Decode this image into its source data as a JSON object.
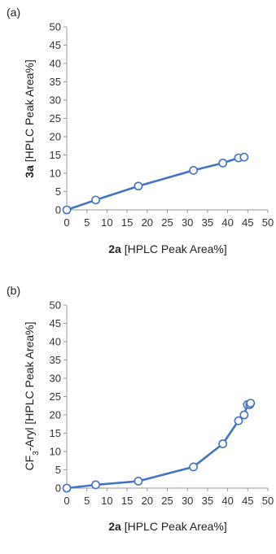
{
  "chart_data": [
    {
      "type": "line",
      "panel_label": "(a)",
      "xlabel": "2a [HPLC Peak Area%]",
      "xlabel_bold": "2a",
      "xlabel_rest": " [HPLC Peak Area%]",
      "ylabel": "3a [HPLC Peak Area%]",
      "ylabel_bold": "3a",
      "ylabel_rest": " [HPLC Peak Area%]",
      "xlim": [
        0,
        50
      ],
      "ylim": [
        0,
        50
      ],
      "xticks": [
        0,
        5,
        10,
        15,
        20,
        25,
        30,
        35,
        40,
        45,
        50
      ],
      "yticks": [
        0,
        5,
        10,
        15,
        20,
        25,
        30,
        35,
        40,
        45,
        50
      ],
      "grid": false,
      "series": [
        {
          "color": "#4472c4",
          "marker": "open-circle",
          "x": [
            0,
            7.2,
            17.8,
            31.5,
            38.8,
            42.7,
            44.1
          ],
          "y": [
            0,
            2.7,
            6.5,
            10.8,
            12.8,
            14.2,
            14.4
          ]
        }
      ]
    },
    {
      "type": "line",
      "panel_label": "(b)",
      "xlabel": "2a [HPLC Peak Area%]",
      "xlabel_bold": "2a",
      "xlabel_rest": " [HPLC Peak Area%]",
      "ylabel": "CF3-Aryl [HPLC Peak Area%]",
      "ylabel_parts": {
        "a": "CF",
        "sub": "3",
        "b": "-Aryl [HPLC Peak Area%]"
      },
      "xlim": [
        0,
        50
      ],
      "ylim": [
        0,
        50
      ],
      "xticks": [
        0,
        5,
        10,
        15,
        20,
        25,
        30,
        35,
        40,
        45,
        50
      ],
      "yticks": [
        0,
        5,
        10,
        15,
        20,
        25,
        30,
        35,
        40,
        45,
        50
      ],
      "grid": false,
      "series": [
        {
          "color": "#4472c4",
          "marker": "open-circle",
          "x": [
            0,
            7.2,
            17.8,
            31.5,
            38.8,
            42.7,
            44.1,
            44.9,
            45.5,
            45.7
          ],
          "y": [
            0,
            0.9,
            1.9,
            5.8,
            12.1,
            18.4,
            20.0,
            22.8,
            22.8,
            23.2
          ]
        }
      ]
    }
  ]
}
